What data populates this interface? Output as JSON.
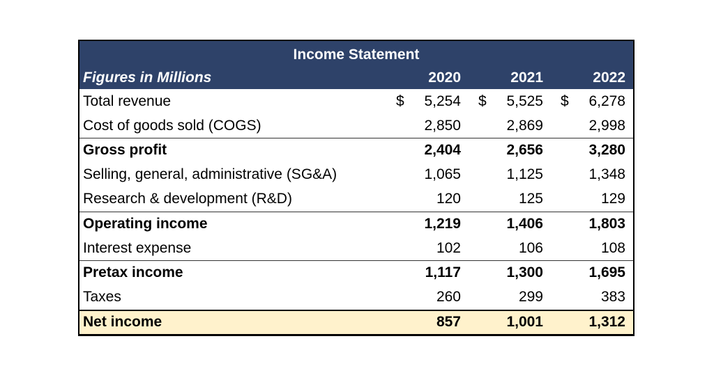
{
  "table": {
    "title": "Income Statement",
    "subtitle": "Figures in Millions",
    "years": [
      "2020",
      "2021",
      "2022"
    ],
    "currency_symbol": "$",
    "rows": [
      {
        "label": "Total revenue",
        "values": [
          "5,254",
          "5,525",
          "6,278"
        ],
        "dollar": true,
        "bold": false,
        "top_border": false,
        "highlight": false
      },
      {
        "label": "Cost of goods sold (COGS)",
        "values": [
          "2,850",
          "2,869",
          "2,998"
        ],
        "dollar": false,
        "bold": false,
        "top_border": false,
        "highlight": false
      },
      {
        "label": "Gross profit",
        "values": [
          "2,404",
          "2,656",
          "3,280"
        ],
        "dollar": false,
        "bold": true,
        "top_border": true,
        "highlight": false
      },
      {
        "label": "Selling, general, administrative (SG&A)",
        "values": [
          "1,065",
          "1,125",
          "1,348"
        ],
        "dollar": false,
        "bold": false,
        "top_border": false,
        "highlight": false
      },
      {
        "label": "Research & development (R&D)",
        "values": [
          "120",
          "125",
          "129"
        ],
        "dollar": false,
        "bold": false,
        "top_border": false,
        "highlight": false
      },
      {
        "label": "Operating income",
        "values": [
          "1,219",
          "1,406",
          "1,803"
        ],
        "dollar": false,
        "bold": true,
        "top_border": true,
        "highlight": false
      },
      {
        "label": "Interest expense",
        "values": [
          "102",
          "106",
          "108"
        ],
        "dollar": false,
        "bold": false,
        "top_border": false,
        "highlight": false
      },
      {
        "label": "Pretax income",
        "values": [
          "1,117",
          "1,300",
          "1,695"
        ],
        "dollar": false,
        "bold": true,
        "top_border": true,
        "highlight": false
      },
      {
        "label": "Taxes",
        "values": [
          "260",
          "299",
          "383"
        ],
        "dollar": false,
        "bold": false,
        "top_border": false,
        "highlight": false
      },
      {
        "label": "Net income",
        "values": [
          "857",
          "1,001",
          "1,312"
        ],
        "dollar": false,
        "bold": true,
        "top_border": false,
        "highlight": true
      }
    ],
    "colors": {
      "header_bg": "#2E4269",
      "header_text": "#FFFFFF",
      "highlight_bg": "#FFF2CC",
      "body_text": "#000000",
      "subtotal_border": "#333333",
      "outer_border": "#000000"
    }
  }
}
